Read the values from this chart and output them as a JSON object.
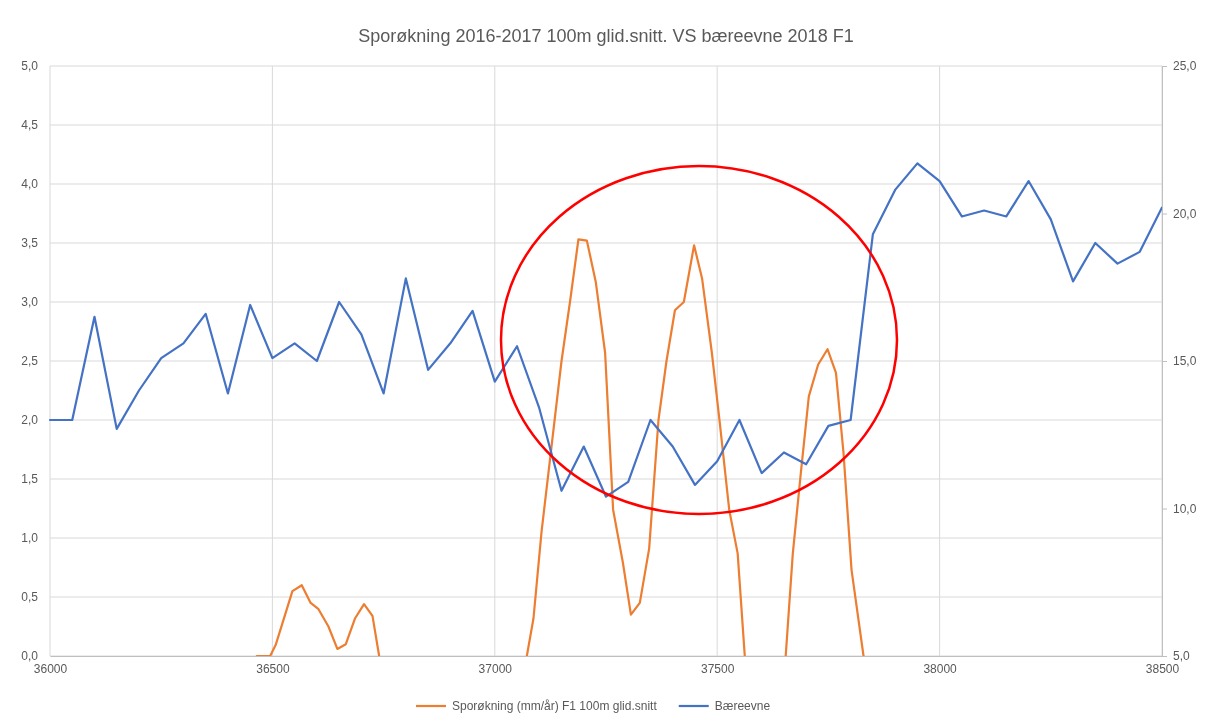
{
  "chart_data": {
    "type": "line",
    "title": "Sporøkning 2016-2017 100m glid.snitt. VS bæreevne 2018 F1",
    "xlim": [
      36000,
      38500
    ],
    "xticks": [
      36000,
      36500,
      37000,
      37500,
      38000,
      38500
    ],
    "ylim": [
      0,
      5
    ],
    "yticks": [
      {
        "value": 0,
        "label": "0,0"
      },
      {
        "value": 0.5,
        "label": "0,5"
      },
      {
        "value": 1,
        "label": "1,0"
      },
      {
        "value": 1.5,
        "label": "1,5"
      },
      {
        "value": 2,
        "label": "2,0"
      },
      {
        "value": 2.5,
        "label": "2,5"
      },
      {
        "value": 3,
        "label": "3,0"
      },
      {
        "value": 3.5,
        "label": "3,5"
      },
      {
        "value": 4,
        "label": "4,0"
      },
      {
        "value": 4.5,
        "label": "4,5"
      },
      {
        "value": 5,
        "label": "5,0"
      }
    ],
    "y2lim": [
      5,
      25
    ],
    "y2ticks": [
      {
        "value": 5,
        "label": "5,0"
      },
      {
        "value": 10,
        "label": "10,0"
      },
      {
        "value": 15,
        "label": "15,0"
      },
      {
        "value": 20,
        "label": "20,0"
      },
      {
        "value": 25,
        "label": "25,0"
      }
    ],
    "grid": true,
    "legend": "bottom",
    "series": [
      {
        "name": "Sporøkning (mm/år) F1 100m glid.snitt",
        "color": "#ed7d31",
        "x": [
          36465,
          36495,
          36508,
          36545,
          36566,
          36586,
          36603,
          36626,
          36646,
          36665,
          36686,
          36706,
          36725,
          36740,
          36900,
          37072,
          37087,
          37105,
          37150,
          37169,
          37188,
          37207,
          37227,
          37248,
          37266,
          37288,
          37306,
          37326,
          37347,
          37368,
          37386,
          37405,
          37425,
          37448,
          37466,
          37488,
          37506,
          37527,
          37546,
          37562,
          37610,
          37654,
          37670,
          37688,
          37706,
          37727,
          37748,
          37767,
          37784,
          37802,
          37829
        ],
        "values": [
          0,
          0,
          0.1,
          0.55,
          0.6,
          0.45,
          0.4,
          0.25,
          0.06,
          0.1,
          0.32,
          0.44,
          0.34,
          0,
          null,
          0,
          0.32,
          1.05,
          2.5,
          3,
          3.53,
          3.52,
          3.17,
          2.57,
          1.24,
          0.79,
          0.35,
          0.45,
          0.91,
          2,
          2.5,
          2.93,
          3,
          3.48,
          3.2,
          2.57,
          1.97,
          1.24,
          0.87,
          0,
          null,
          0,
          0.87,
          1.55,
          2.2,
          2.47,
          2.6,
          2.4,
          1.72,
          0.73,
          0
        ]
      },
      {
        "name": "Bæreevne",
        "color": "#4472c4",
        "axis": "y2",
        "x": [
          36000,
          36050,
          36100,
          36150,
          36200,
          36250,
          36300,
          36350,
          36400,
          36450,
          36500,
          36550,
          36600,
          36650,
          36700,
          36750,
          36800,
          36850,
          36900,
          36950,
          37000,
          37050,
          37100,
          37150,
          37200,
          37250,
          37300,
          37350,
          37400,
          37450,
          37500,
          37550,
          37600,
          37650,
          37700,
          37750,
          37800,
          37850,
          37900,
          37950,
          38000,
          38050,
          38100,
          38150,
          38200,
          38250,
          38300,
          38350,
          38400,
          38450,
          38500
        ],
        "values": [
          13.0,
          13.0,
          16.5,
          12.7,
          14.0,
          15.1,
          15.6,
          16.6,
          13.9,
          16.9,
          15.1,
          15.6,
          15.0,
          17.0,
          15.9,
          13.9,
          17.8,
          14.7,
          15.6,
          16.7,
          14.3,
          15.5,
          13.4,
          10.6,
          12.1,
          10.4,
          10.9,
          13.0,
          12.1,
          10.8,
          11.6,
          13.0,
          11.2,
          11.9,
          11.5,
          12.8,
          13.0,
          19.3,
          20.8,
          21.7,
          21.1,
          19.9,
          20.1,
          19.9,
          21.1,
          19.8,
          17.7,
          19.0,
          18.3,
          18.7,
          20.2
        ]
      }
    ]
  }
}
